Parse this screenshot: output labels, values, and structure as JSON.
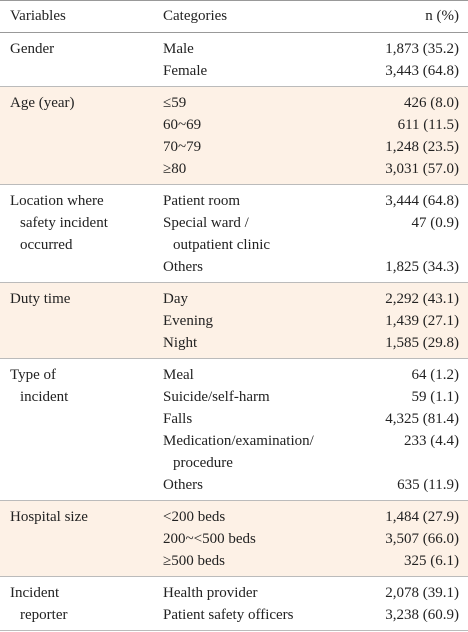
{
  "table": {
    "header": [
      "Variables",
      "Categories",
      "n (%)"
    ],
    "groups": [
      {
        "variable": [
          "Gender"
        ],
        "rows": [
          {
            "category": [
              "Male"
            ],
            "n": "1,873 (35.2)"
          },
          {
            "category": [
              "Female"
            ],
            "n": "3,443 (64.8)"
          }
        ]
      },
      {
        "variable": [
          "Age (year)"
        ],
        "rows": [
          {
            "category": [
              "≤59"
            ],
            "n": "426 (8.0)"
          },
          {
            "category": [
              "60~69"
            ],
            "n": "611 (11.5)"
          },
          {
            "category": [
              "70~79"
            ],
            "n": "1,248 (23.5)"
          },
          {
            "category": [
              "≥80"
            ],
            "n": "3,031 (57.0)"
          }
        ]
      },
      {
        "variable": [
          "Location where",
          "safety incident",
          "occurred"
        ],
        "rows": [
          {
            "category": [
              "Patient room"
            ],
            "n": "3,444 (64.8)"
          },
          {
            "category": [
              "Special ward /",
              "outpatient clinic"
            ],
            "n": "47 (0.9)"
          },
          {
            "category": [
              "Others"
            ],
            "n": "1,825 (34.3)"
          }
        ]
      },
      {
        "variable": [
          "Duty time"
        ],
        "rows": [
          {
            "category": [
              "Day"
            ],
            "n": "2,292 (43.1)"
          },
          {
            "category": [
              "Evening"
            ],
            "n": "1,439 (27.1)"
          },
          {
            "category": [
              "Night"
            ],
            "n": "1,585 (29.8)"
          }
        ]
      },
      {
        "variable": [
          "Type of",
          "incident"
        ],
        "rows": [
          {
            "category": [
              "Meal"
            ],
            "n": "64 (1.2)"
          },
          {
            "category": [
              "Suicide/self-harm"
            ],
            "n": "59 (1.1)"
          },
          {
            "category": [
              "Falls"
            ],
            "n": "4,325 (81.4)"
          },
          {
            "category": [
              "Medication/examination/",
              "procedure"
            ],
            "n": "233 (4.4)"
          },
          {
            "category": [
              "Others"
            ],
            "n": "635 (11.9)"
          }
        ]
      },
      {
        "variable": [
          "Hospital size"
        ],
        "rows": [
          {
            "category": [
              "<200 beds"
            ],
            "n": "1,484 (27.9)"
          },
          {
            "category": [
              "200~<500 beds"
            ],
            "n": "3,507 (66.0)"
          },
          {
            "category": [
              "≥500 beds"
            ],
            "n": "325 (6.1)"
          }
        ]
      },
      {
        "variable": [
          "Incident",
          "reporter"
        ],
        "rows": [
          {
            "category": [
              "Health provider"
            ],
            "n": "2,078 (39.1)"
          },
          {
            "category": [
              "Patient safety officers"
            ],
            "n": "3,238 (60.9)"
          }
        ]
      }
    ]
  }
}
